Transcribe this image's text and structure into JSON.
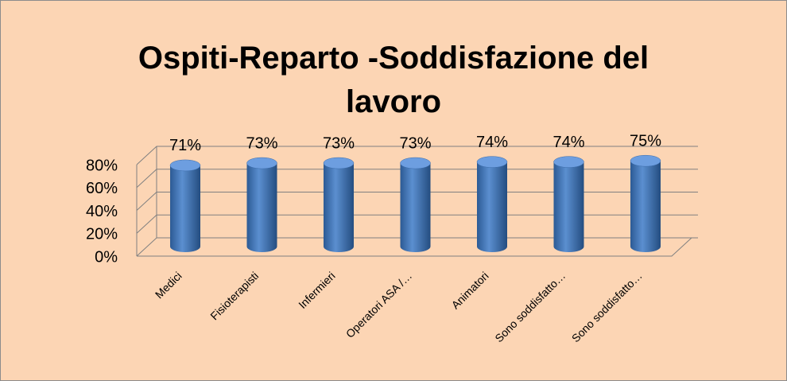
{
  "chart_data": {
    "type": "bar3d",
    "title": "Ospiti-Reparto -Soddisfazione del lavoro",
    "categories": [
      "Medici",
      "Fisioterapisti",
      "Infermieri",
      "Operatori ASA /…",
      "Animatori",
      "Sono soddisfatto…",
      "Sono soddisfatto…"
    ],
    "values": [
      71,
      73,
      73,
      73,
      74,
      74,
      75
    ],
    "value_labels": [
      "71%",
      "73%",
      "73%",
      "73%",
      "74%",
      "74%",
      "75%"
    ],
    "color": "#4f81bd",
    "ylim": [
      0,
      80
    ],
    "yticks": [
      {
        "value": 0,
        "label": "0%"
      },
      {
        "value": 20,
        "label": "20%"
      },
      {
        "value": 40,
        "label": "40%"
      },
      {
        "value": 60,
        "label": "60%"
      },
      {
        "value": 80,
        "label": "80%"
      }
    ],
    "grid": true
  }
}
